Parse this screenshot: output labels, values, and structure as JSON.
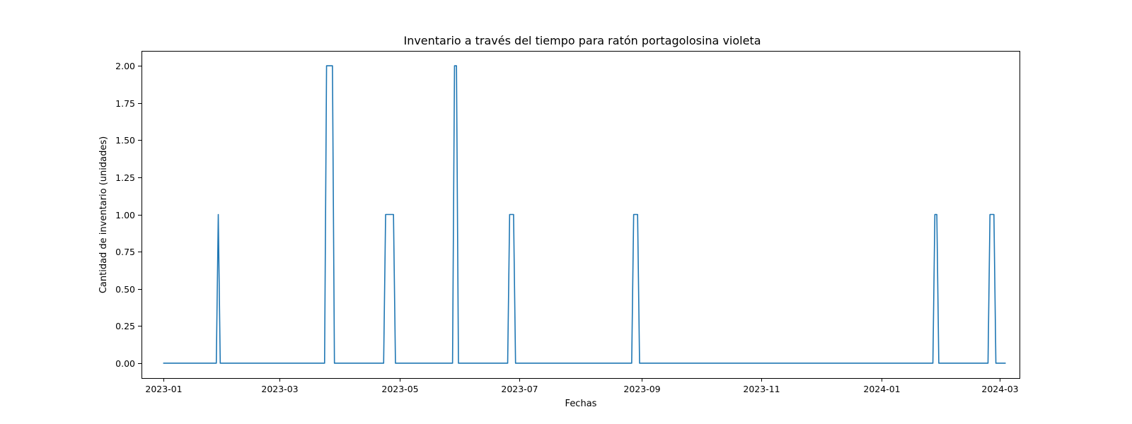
{
  "chart_data": {
    "type": "line",
    "title": "Inventario a través del tiempo para ratón portagolosina violeta",
    "xlabel": "Fechas",
    "ylabel": "Cantidad de inventario (unidades)",
    "x_ticks": [
      "2023-01",
      "2023-03",
      "2023-05",
      "2023-07",
      "2023-09",
      "2023-11",
      "2024-01",
      "2024-03"
    ],
    "y_ticks": [
      "0.00",
      "0.25",
      "0.50",
      "0.75",
      "1.00",
      "1.25",
      "1.50",
      "1.75",
      "2.00"
    ],
    "xlim": [
      "2022-12-21",
      "2024-03-11"
    ],
    "ylim": [
      -0.1,
      2.1
    ],
    "grid": false,
    "color": "#1f77b4",
    "series": [
      {
        "x": [
          "2023-01-01",
          "2023-01-28",
          "2023-01-29",
          "2023-01-30",
          "2023-03-24",
          "2023-03-25",
          "2023-03-28",
          "2023-03-29",
          "2023-04-23",
          "2023-04-24",
          "2023-04-28",
          "2023-04-29",
          "2023-05-28",
          "2023-05-29",
          "2023-05-30",
          "2023-05-31",
          "2023-06-25",
          "2023-06-26",
          "2023-06-28",
          "2023-06-29",
          "2023-08-27",
          "2023-08-28",
          "2023-08-30",
          "2023-08-31",
          "2024-01-27",
          "2024-01-28",
          "2024-01-29",
          "2024-01-30",
          "2024-02-24",
          "2024-02-25",
          "2024-02-27",
          "2024-02-28",
          "2024-03-04"
        ],
        "y": [
          0,
          0,
          1,
          0,
          0,
          2,
          2,
          0,
          0,
          1,
          1,
          0,
          0,
          2,
          2,
          0,
          0,
          1,
          1,
          0,
          0,
          1,
          1,
          0,
          0,
          1,
          1,
          0,
          0,
          1,
          1,
          0,
          0
        ]
      }
    ]
  }
}
